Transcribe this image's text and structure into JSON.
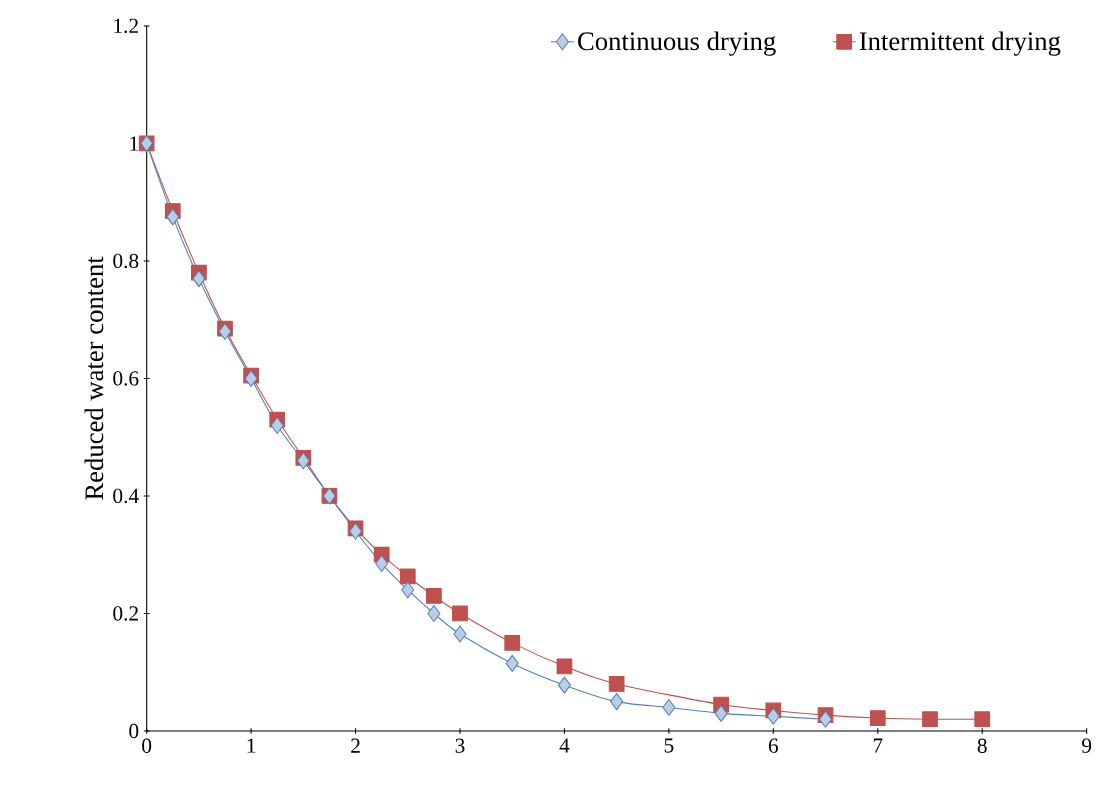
{
  "chart_data": {
    "type": "line",
    "ylabel": "Reduced water content",
    "xlim": [
      0,
      9
    ],
    "ylim": [
      0,
      1.2
    ],
    "xticks": [
      0,
      1,
      2,
      3,
      4,
      5,
      6,
      7,
      8,
      9
    ],
    "yticks": [
      0,
      0.2,
      0.4,
      0.6,
      0.8,
      1,
      1.2
    ],
    "grid": false,
    "legend": "top right",
    "line_style": "solid",
    "series": [
      {
        "name": "Continuous drying",
        "color": "#4f81bd",
        "marker": "diamond",
        "x": [
          0,
          0.25,
          0.5,
          0.75,
          1,
          1.25,
          1.5,
          1.75,
          2,
          2.25,
          2.5,
          2.75,
          3,
          3.5,
          4,
          4.5,
          5,
          5.5,
          6,
          6.5
        ],
        "values": [
          1,
          0.875,
          0.77,
          0.68,
          0.6,
          0.52,
          0.46,
          0.4,
          0.34,
          0.285,
          0.24,
          0.2,
          0.165,
          0.115,
          0.078,
          0.05,
          0.04,
          0.03,
          0.025,
          0.02
        ]
      },
      {
        "name": "Intermittent drying",
        "color": "#c0504d",
        "marker": "square",
        "x": [
          0,
          0.25,
          0.5,
          0.75,
          1,
          1.25,
          1.5,
          1.75,
          2,
          2.25,
          2.5,
          2.75,
          3,
          3.5,
          4,
          4.5,
          5.5,
          6,
          6.5,
          7,
          7.5,
          8
        ],
        "values": [
          1,
          0.885,
          0.78,
          0.685,
          0.605,
          0.53,
          0.465,
          0.4,
          0.345,
          0.3,
          0.263,
          0.23,
          0.2,
          0.15,
          0.11,
          0.08,
          0.045,
          0.035,
          0.027,
          0.022,
          0.02,
          0.02
        ]
      }
    ]
  }
}
